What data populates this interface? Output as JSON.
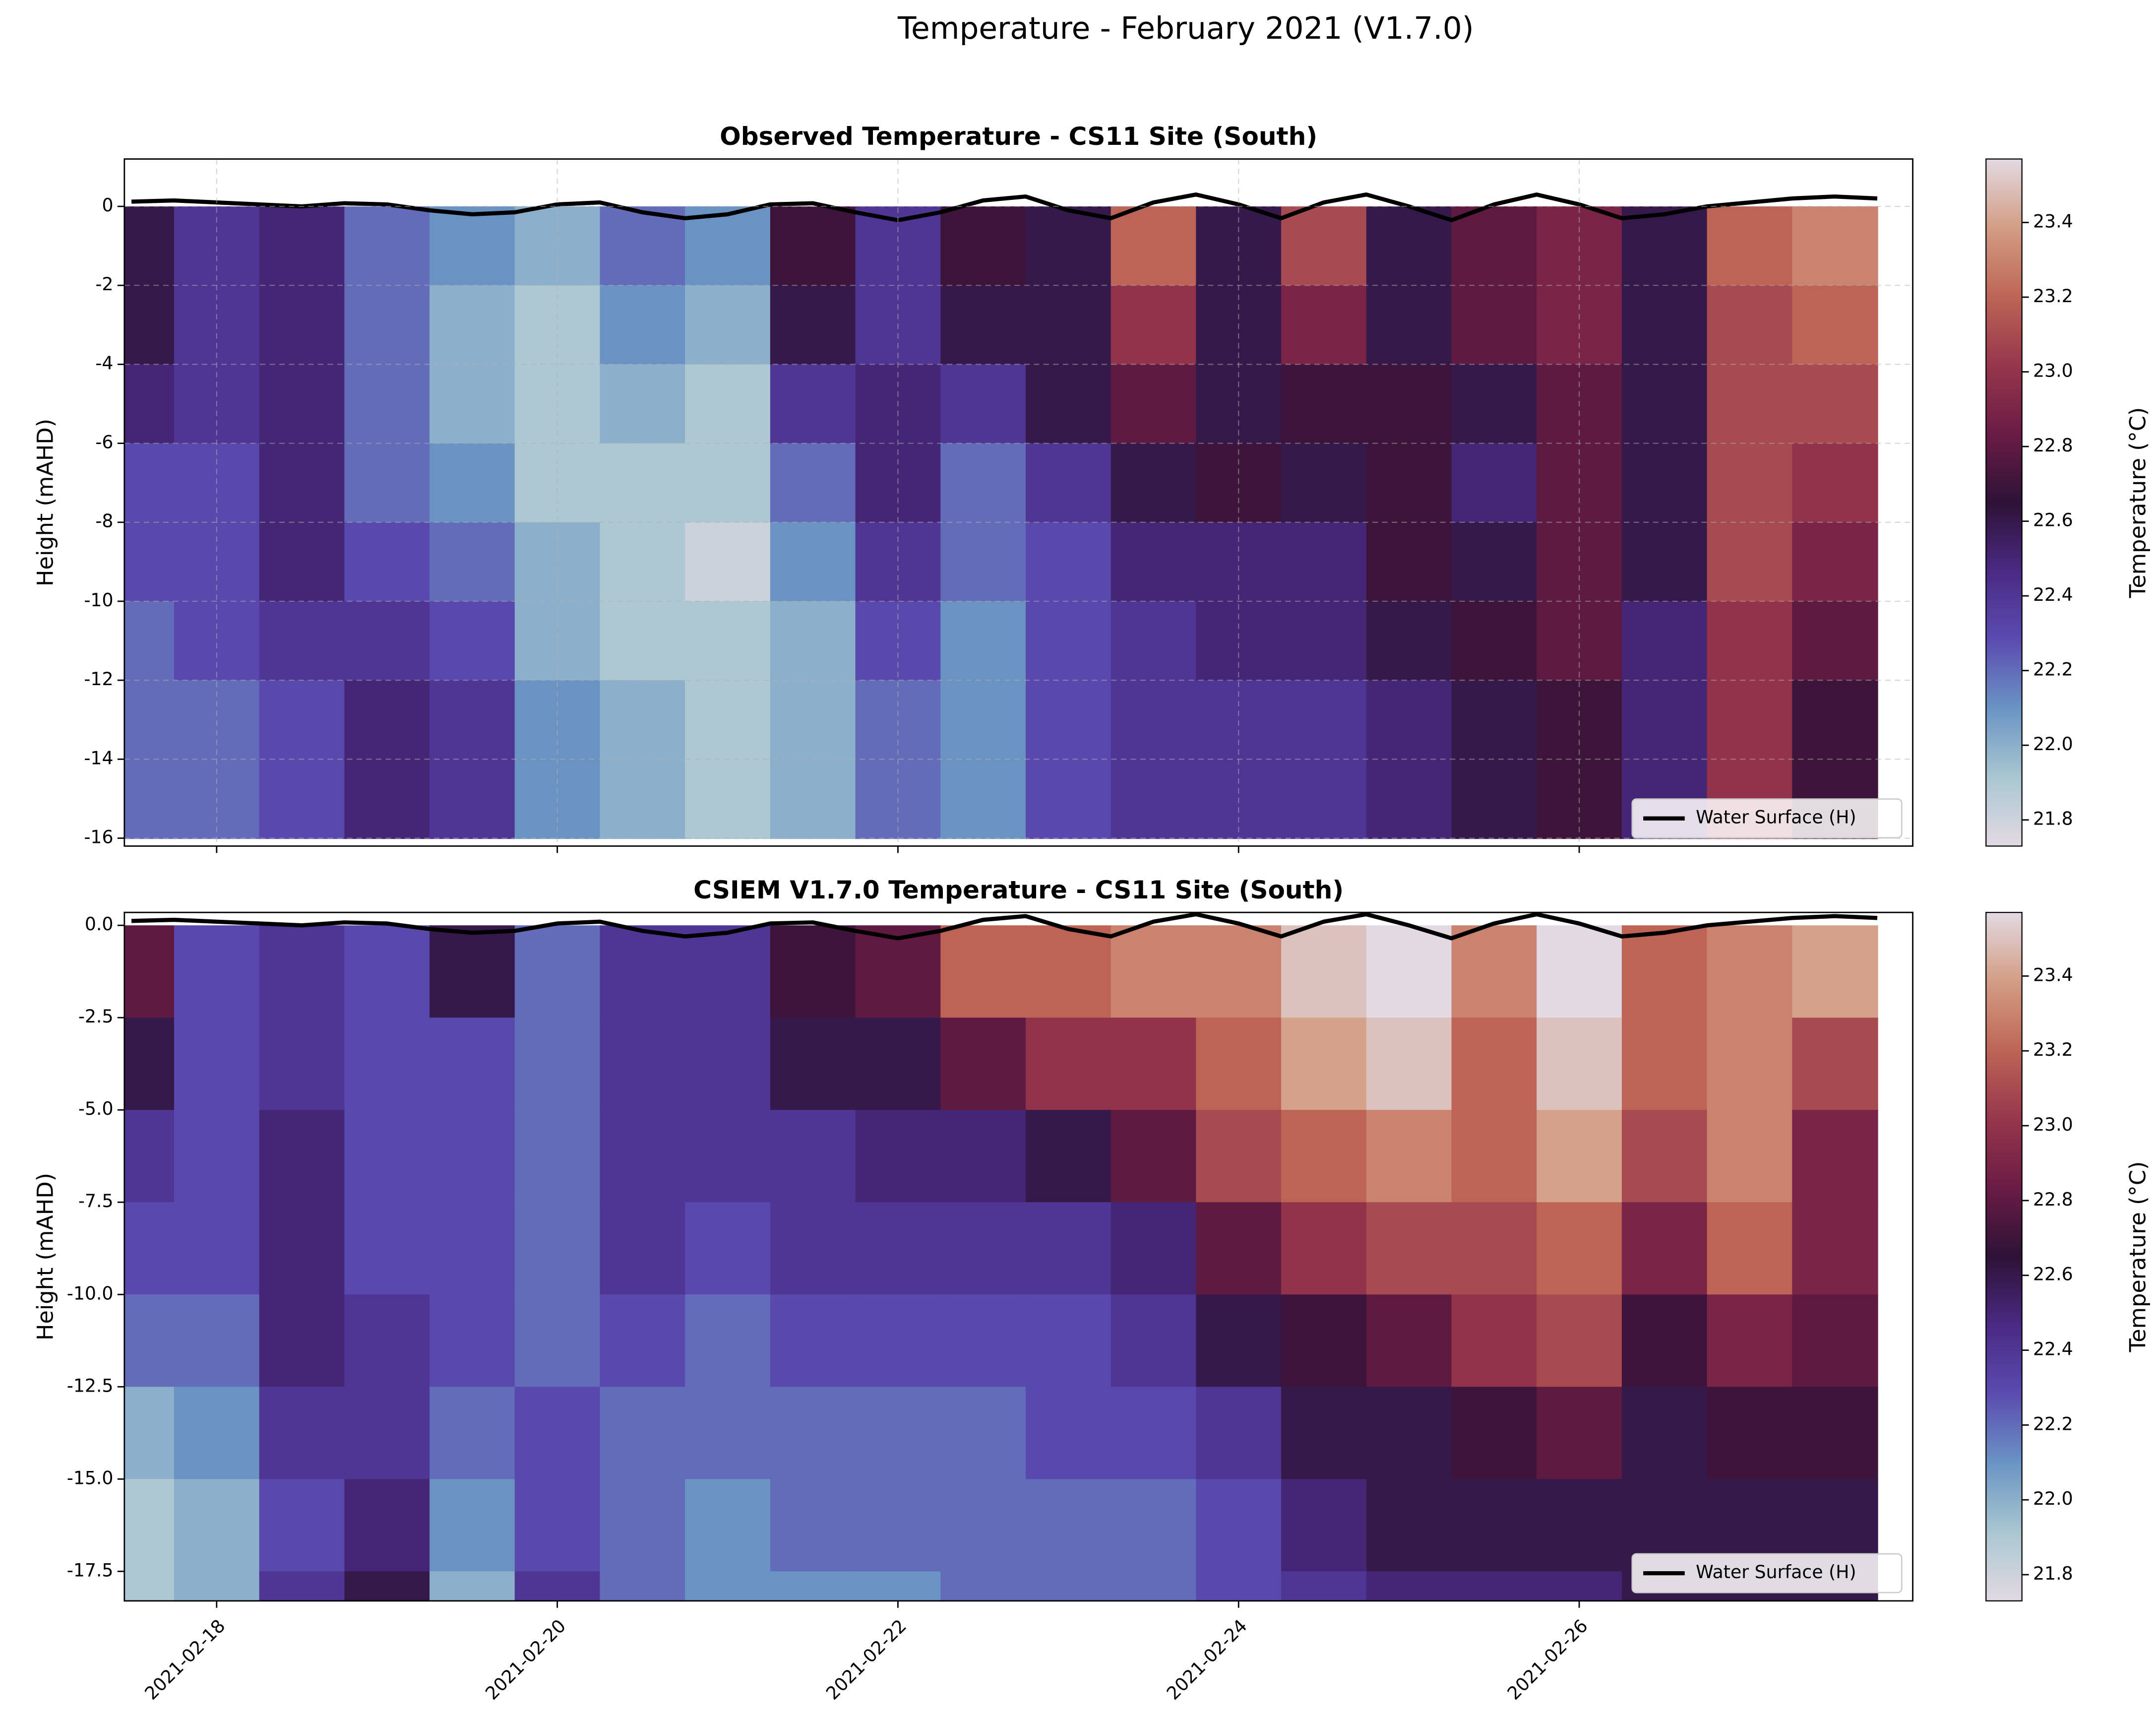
{
  "title": "Temperature - February 2021 (V1.7.0)",
  "chart_data": [
    {
      "type": "heatmap",
      "title": "Observed Temperature - CS11 Site (South)",
      "ylabel": "Height (mAHD)",
      "x": [
        "2021-02-17T12:00",
        "2021-02-18T00:00",
        "2021-02-18T12:00",
        "2021-02-19T00:00",
        "2021-02-19T12:00",
        "2021-02-20T00:00",
        "2021-02-20T12:00",
        "2021-02-21T00:00",
        "2021-02-21T12:00",
        "2021-02-22T00:00",
        "2021-02-22T12:00",
        "2021-02-23T00:00",
        "2021-02-23T12:00",
        "2021-02-24T00:00",
        "2021-02-24T12:00",
        "2021-02-25T00:00",
        "2021-02-25T12:00",
        "2021-02-26T00:00",
        "2021-02-26T12:00",
        "2021-02-27T00:00",
        "2021-02-27T12:00"
      ],
      "heights": [
        -1,
        -3,
        -5,
        -7,
        -9,
        -11,
        -13,
        -15
      ],
      "values": [
        [
          22.6,
          22.6,
          22.5,
          22.3,
          22.3,
          22.2,
          22.2,
          22.2
        ],
        [
          22.4,
          22.4,
          22.4,
          22.3,
          22.3,
          22.3,
          22.2,
          22.2
        ],
        [
          22.5,
          22.5,
          22.5,
          22.5,
          22.5,
          22.4,
          22.3,
          22.3
        ],
        [
          22.2,
          22.2,
          22.2,
          22.2,
          22.3,
          22.4,
          22.5,
          22.5
        ],
        [
          22.1,
          22.0,
          22.0,
          22.1,
          22.2,
          22.3,
          22.4,
          22.4
        ],
        [
          22.0,
          21.9,
          21.9,
          21.9,
          22.0,
          22.0,
          22.1,
          22.1
        ],
        [
          22.2,
          22.1,
          22.0,
          21.9,
          21.9,
          21.9,
          22.0,
          22.0
        ],
        [
          22.1,
          22.0,
          21.9,
          21.9,
          21.8,
          21.9,
          21.9,
          21.9
        ],
        [
          22.7,
          22.6,
          22.4,
          22.2,
          22.1,
          22.0,
          22.0,
          22.0
        ],
        [
          22.4,
          22.4,
          22.5,
          22.5,
          22.4,
          22.3,
          22.2,
          22.2
        ],
        [
          22.7,
          22.6,
          22.4,
          22.2,
          22.2,
          22.1,
          22.1,
          22.1
        ],
        [
          22.6,
          22.6,
          22.6,
          22.4,
          22.3,
          22.3,
          22.3,
          22.3
        ],
        [
          23.2,
          23.0,
          22.8,
          22.6,
          22.5,
          22.4,
          22.4,
          22.4
        ],
        [
          22.6,
          22.6,
          22.6,
          22.7,
          22.5,
          22.5,
          22.4,
          22.4
        ],
        [
          23.1,
          22.9,
          22.7,
          22.6,
          22.5,
          22.5,
          22.4,
          22.4
        ],
        [
          22.6,
          22.6,
          22.7,
          22.7,
          22.7,
          22.6,
          22.5,
          22.5
        ],
        [
          22.8,
          22.8,
          22.6,
          22.5,
          22.6,
          22.7,
          22.6,
          22.6
        ],
        [
          22.9,
          22.9,
          22.8,
          22.8,
          22.8,
          22.8,
          22.7,
          22.7
        ],
        [
          22.6,
          22.6,
          22.6,
          22.6,
          22.6,
          22.5,
          22.5,
          22.5
        ],
        [
          23.2,
          23.1,
          23.1,
          23.1,
          23.1,
          23.0,
          23.0,
          23.0
        ],
        [
          23.3,
          23.2,
          23.1,
          23.0,
          22.9,
          22.8,
          22.7,
          22.7
        ]
      ],
      "xlim": [
        "2021-02-17T11:00",
        "2021-02-27T23:00"
      ],
      "ylim": [
        -16.2,
        1.2
      ],
      "yticks": [
        -16,
        -14,
        -12,
        -10,
        -8,
        -6,
        -4,
        -2,
        0
      ],
      "grid": true,
      "clim": [
        21.73,
        23.57
      ],
      "cmap": [
        "#e2d9e2",
        "#a9c7d1",
        "#6a94c4",
        "#5b4cb0",
        "#4a2a84",
        "#2e1236",
        "#6a1c45",
        "#97364c",
        "#bd6556",
        "#d39d84",
        "#e2d9e2"
      ],
      "cticks": [
        21.8,
        {
          "value": 22.0,
          "label": "22.0"
        },
        22.2,
        22.4,
        22.6,
        22.8,
        {
          "value": 23.0,
          "label": "23.0"
        },
        23.2,
        23.4
      ],
      "colorbar_label": "Temperature (°C)",
      "legend": "lower right",
      "series": [
        {
          "name": "Water Surface (H)",
          "color": "#000000",
          "x": [
            "2021-02-17T12:00",
            "2021-02-17T18:00",
            "2021-02-18T00:00",
            "2021-02-18T06:00",
            "2021-02-18T12:00",
            "2021-02-18T18:00",
            "2021-02-19T00:00",
            "2021-02-19T06:00",
            "2021-02-19T12:00",
            "2021-02-19T18:00",
            "2021-02-20T00:00",
            "2021-02-20T06:00",
            "2021-02-20T12:00",
            "2021-02-20T18:00",
            "2021-02-21T00:00",
            "2021-02-21T06:00",
            "2021-02-21T12:00",
            "2021-02-21T18:00",
            "2021-02-22T00:00",
            "2021-02-22T06:00",
            "2021-02-22T12:00",
            "2021-02-22T18:00",
            "2021-02-23T00:00",
            "2021-02-23T06:00",
            "2021-02-23T12:00",
            "2021-02-23T18:00",
            "2021-02-24T00:00",
            "2021-02-24T06:00",
            "2021-02-24T12:00",
            "2021-02-24T18:00",
            "2021-02-25T00:00",
            "2021-02-25T06:00",
            "2021-02-25T12:00",
            "2021-02-25T18:00",
            "2021-02-26T00:00",
            "2021-02-26T06:00",
            "2021-02-26T12:00",
            "2021-02-26T18:00",
            "2021-02-27T00:00",
            "2021-02-27T06:00",
            "2021-02-27T12:00",
            "2021-02-27T18:00"
          ],
          "values": [
            0.12,
            0.15,
            0.1,
            0.05,
            0.0,
            0.08,
            0.05,
            -0.1,
            -0.2,
            -0.15,
            0.05,
            0.1,
            -0.15,
            -0.3,
            -0.2,
            0.05,
            0.08,
            -0.15,
            -0.35,
            -0.15,
            0.15,
            0.25,
            -0.1,
            -0.3,
            0.1,
            0.3,
            0.05,
            -0.3,
            0.1,
            0.3,
            0.0,
            -0.35,
            0.05,
            0.3,
            0.05,
            -0.3,
            -0.2,
            0.0,
            0.1,
            0.2,
            0.25,
            0.2
          ]
        }
      ]
    },
    {
      "type": "heatmap",
      "title": "CSIEM V1.7.0 Temperature - CS11 Site (South)",
      "ylabel": "Height (mAHD)",
      "x": [
        "2021-02-17T12:00",
        "2021-02-18T00:00",
        "2021-02-18T12:00",
        "2021-02-19T00:00",
        "2021-02-19T12:00",
        "2021-02-20T00:00",
        "2021-02-20T12:00",
        "2021-02-21T00:00",
        "2021-02-21T12:00",
        "2021-02-22T00:00",
        "2021-02-22T12:00",
        "2021-02-23T00:00",
        "2021-02-23T12:00",
        "2021-02-24T00:00",
        "2021-02-24T12:00",
        "2021-02-25T00:00",
        "2021-02-25T12:00",
        "2021-02-26T00:00",
        "2021-02-26T12:00",
        "2021-02-27T00:00",
        "2021-02-27T12:00"
      ],
      "heights": [
        -1.25,
        -3.75,
        -6.25,
        -8.75,
        -11.25,
        -13.75,
        -16.25,
        -18.75
      ],
      "values": [
        [
          22.8,
          22.6,
          22.4,
          22.3,
          22.2,
          22.0,
          21.9,
          21.9
        ],
        [
          22.3,
          22.3,
          22.3,
          22.3,
          22.2,
          22.1,
          22.0,
          22.0
        ],
        [
          22.4,
          22.4,
          22.5,
          22.5,
          22.5,
          22.4,
          22.3,
          22.4
        ],
        [
          22.3,
          22.3,
          22.3,
          22.3,
          22.4,
          22.4,
          22.5,
          22.6
        ],
        [
          22.6,
          22.3,
          22.3,
          22.3,
          22.3,
          22.2,
          22.1,
          22.0
        ],
        [
          22.2,
          22.2,
          22.2,
          22.2,
          22.2,
          22.3,
          22.3,
          22.4
        ],
        [
          22.4,
          22.4,
          22.4,
          22.4,
          22.3,
          22.2,
          22.2,
          22.2
        ],
        [
          22.4,
          22.4,
          22.4,
          22.3,
          22.2,
          22.2,
          22.1,
          22.1
        ],
        [
          22.7,
          22.6,
          22.4,
          22.4,
          22.3,
          22.2,
          22.2,
          22.1
        ],
        [
          22.8,
          22.6,
          22.5,
          22.4,
          22.3,
          22.2,
          22.2,
          22.1
        ],
        [
          23.2,
          22.8,
          22.5,
          22.4,
          22.3,
          22.2,
          22.2,
          22.2
        ],
        [
          23.2,
          23.0,
          22.6,
          22.4,
          22.3,
          22.3,
          22.2,
          22.2
        ],
        [
          23.3,
          23.0,
          22.8,
          22.5,
          22.4,
          22.3,
          22.2,
          22.2
        ],
        [
          23.3,
          23.2,
          23.1,
          22.8,
          22.6,
          22.4,
          22.3,
          22.3
        ],
        [
          23.5,
          23.4,
          23.2,
          23.0,
          22.7,
          22.6,
          22.5,
          22.4
        ],
        [
          23.6,
          23.5,
          23.3,
          23.1,
          22.8,
          22.6,
          22.6,
          22.5
        ],
        [
          23.3,
          23.2,
          23.2,
          23.1,
          23.0,
          22.7,
          22.6,
          22.5
        ],
        [
          23.6,
          23.5,
          23.4,
          23.2,
          23.1,
          22.8,
          22.6,
          22.5
        ],
        [
          23.2,
          23.2,
          23.1,
          22.9,
          22.7,
          22.6,
          22.6,
          22.6
        ],
        [
          23.3,
          23.3,
          23.3,
          23.2,
          22.9,
          22.7,
          22.6,
          22.6
        ],
        [
          23.4,
          23.1,
          22.9,
          22.9,
          22.8,
          22.7,
          22.6,
          22.6
        ]
      ],
      "xlim": [
        "2021-02-17T11:00",
        "2021-02-27T23:00"
      ],
      "ylim": [
        -18.3,
        0.35
      ],
      "yticks": [
        -17.5,
        {
          "value": -15,
          "label": "-15.0"
        },
        -12.5,
        {
          "value": -10,
          "label": "-10.0"
        },
        -7.5,
        {
          "value": -5,
          "label": "-5.0"
        },
        -2.5,
        {
          "value": 0,
          "label": "0.0"
        }
      ],
      "xticks": [
        "2021-02-18",
        "2021-02-20",
        "2021-02-22",
        "2021-02-24",
        "2021-02-26"
      ],
      "grid": false,
      "clim": [
        21.73,
        23.57
      ],
      "cmap": [
        "#e2d9e2",
        "#a9c7d1",
        "#6a94c4",
        "#5b4cb0",
        "#4a2a84",
        "#2e1236",
        "#6a1c45",
        "#97364c",
        "#bd6556",
        "#d39d84",
        "#e2d9e2"
      ],
      "cticks": [
        21.8,
        {
          "value": 22.0,
          "label": "22.0"
        },
        22.2,
        22.4,
        22.6,
        22.8,
        {
          "value": 23.0,
          "label": "23.0"
        },
        23.2,
        23.4
      ],
      "colorbar_label": "Temperature (°C)",
      "legend": "lower right",
      "series": [
        {
          "name": "Water Surface (H)",
          "color": "#000000",
          "x": [
            "2021-02-17T12:00",
            "2021-02-17T18:00",
            "2021-02-18T00:00",
            "2021-02-18T06:00",
            "2021-02-18T12:00",
            "2021-02-18T18:00",
            "2021-02-19T00:00",
            "2021-02-19T06:00",
            "2021-02-19T12:00",
            "2021-02-19T18:00",
            "2021-02-20T00:00",
            "2021-02-20T06:00",
            "2021-02-20T12:00",
            "2021-02-20T18:00",
            "2021-02-21T00:00",
            "2021-02-21T06:00",
            "2021-02-21T12:00",
            "2021-02-21T18:00",
            "2021-02-22T00:00",
            "2021-02-22T06:00",
            "2021-02-22T12:00",
            "2021-02-22T18:00",
            "2021-02-23T00:00",
            "2021-02-23T06:00",
            "2021-02-23T12:00",
            "2021-02-23T18:00",
            "2021-02-24T00:00",
            "2021-02-24T06:00",
            "2021-02-24T12:00",
            "2021-02-24T18:00",
            "2021-02-25T00:00",
            "2021-02-25T06:00",
            "2021-02-25T12:00",
            "2021-02-25T18:00",
            "2021-02-26T00:00",
            "2021-02-26T06:00",
            "2021-02-26T12:00",
            "2021-02-26T18:00",
            "2021-02-27T00:00",
            "2021-02-27T06:00",
            "2021-02-27T12:00",
            "2021-02-27T18:00"
          ],
          "values": [
            0.12,
            0.15,
            0.1,
            0.05,
            0.0,
            0.08,
            0.05,
            -0.1,
            -0.2,
            -0.15,
            0.05,
            0.1,
            -0.15,
            -0.3,
            -0.2,
            0.05,
            0.08,
            -0.15,
            -0.35,
            -0.15,
            0.15,
            0.25,
            -0.1,
            -0.3,
            0.1,
            0.3,
            0.05,
            -0.3,
            0.1,
            0.3,
            0.0,
            -0.35,
            0.05,
            0.3,
            0.05,
            -0.3,
            -0.2,
            0.0,
            0.1,
            0.2,
            0.25,
            0.2
          ]
        }
      ]
    }
  ]
}
